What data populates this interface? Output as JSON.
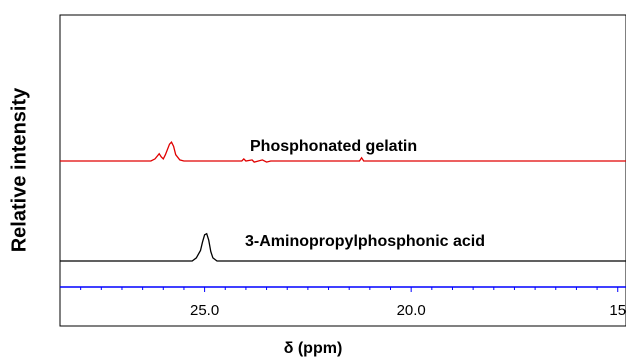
{
  "chart_data": {
    "type": "line",
    "title": "",
    "xlabel": "δ (ppm)",
    "ylabel": "Relative intensity",
    "xlim": [
      28.5,
      14.8
    ],
    "x_reversed": true,
    "x_ticks": [
      "25.0",
      "20.0",
      "15"
    ],
    "x_tick_values": [
      25.0,
      20.0,
      15.0
    ],
    "axis_color": "#0000ff",
    "grid": false,
    "series": [
      {
        "name": "Phosphonated gelatin",
        "color": "#e00000",
        "baseline": 0.62,
        "points": [
          [
            28.5,
            0
          ],
          [
            26.3,
            0
          ],
          [
            26.2,
            0.02
          ],
          [
            26.1,
            0.07
          ],
          [
            26.05,
            0.04
          ],
          [
            26.0,
            0.02
          ],
          [
            25.95,
            0.06
          ],
          [
            25.85,
            0.16
          ],
          [
            25.8,
            0.18
          ],
          [
            25.75,
            0.14
          ],
          [
            25.7,
            0.06
          ],
          [
            25.6,
            0.01
          ],
          [
            25.5,
            0
          ],
          [
            24.1,
            0
          ],
          [
            24.05,
            0.02
          ],
          [
            24.0,
            0
          ],
          [
            23.85,
            0.01
          ],
          [
            23.8,
            -0.01
          ],
          [
            23.6,
            0.01
          ],
          [
            23.5,
            -0.01
          ],
          [
            23.4,
            0
          ],
          [
            21.25,
            0
          ],
          [
            21.2,
            0.03
          ],
          [
            21.15,
            0
          ],
          [
            14.8,
            0
          ]
        ]
      },
      {
        "name": "3-Aminopropylphosphonic acid",
        "color": "#000000",
        "baseline": 0.0,
        "points": [
          [
            28.5,
            0
          ],
          [
            25.3,
            0
          ],
          [
            25.2,
            0.03
          ],
          [
            25.1,
            0.1
          ],
          [
            25.05,
            0.18
          ],
          [
            25.0,
            0.25
          ],
          [
            24.95,
            0.26
          ],
          [
            24.9,
            0.2
          ],
          [
            24.85,
            0.09
          ],
          [
            24.8,
            0.03
          ],
          [
            24.7,
            0
          ],
          [
            14.8,
            0
          ]
        ]
      }
    ]
  }
}
